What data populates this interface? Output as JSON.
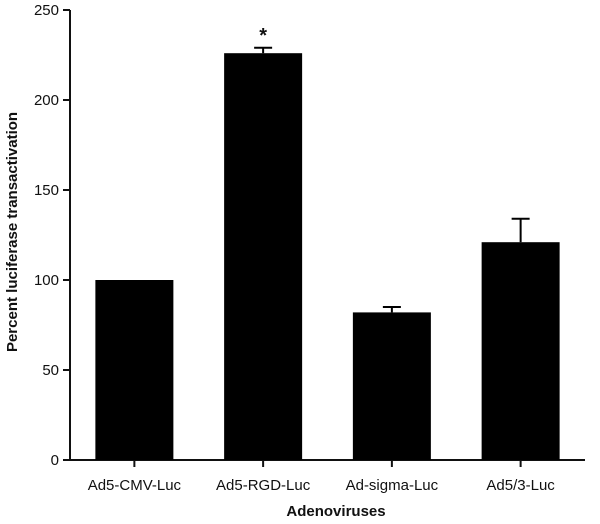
{
  "chart_data": {
    "type": "bar",
    "categories": [
      "Ad5-CMV-Luc",
      "Ad5-RGD-Luc",
      "Ad-sigma-Luc",
      "Ad5/3-Luc"
    ],
    "values": [
      100,
      226,
      82,
      121
    ],
    "errors": [
      0,
      3,
      3,
      13
    ],
    "annotations": [
      "",
      "*",
      "",
      ""
    ],
    "xlabel": "Adenoviruses",
    "ylabel": "Percent luciferase transactivation",
    "ylim": [
      0,
      250
    ],
    "yticks": [
      0,
      50,
      100,
      150,
      200,
      250
    ],
    "grid": false,
    "bar_color": "#000000"
  }
}
